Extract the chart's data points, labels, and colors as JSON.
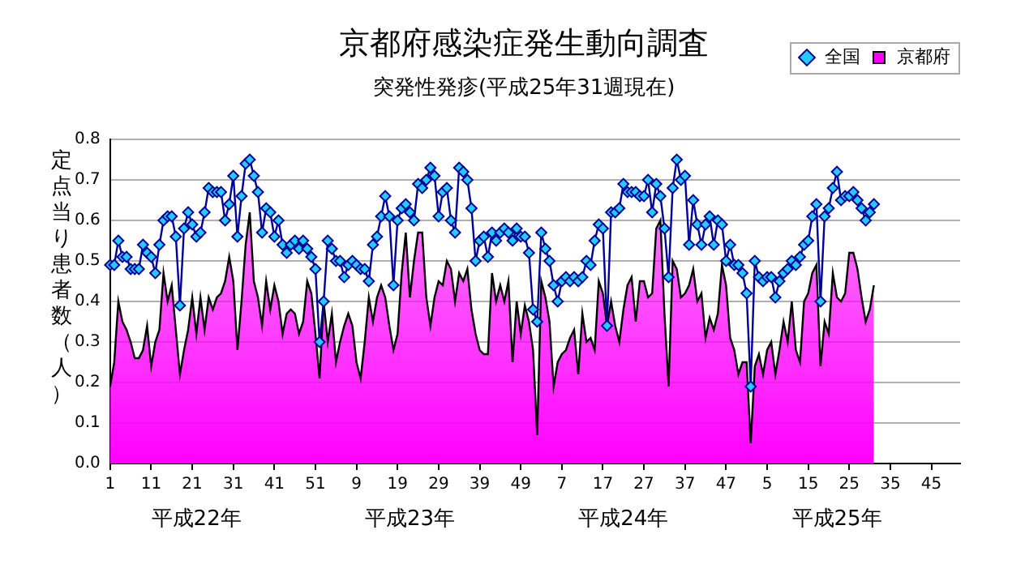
{
  "chart_data": {
    "type": "line",
    "title": "京都府感染症発生動向調査",
    "subtitle": "突発性発疹(平成25年31週現在)",
    "ylabel": "定点当り患者数（人）",
    "annotations": [
      "平成22年",
      "平成23年",
      "平成24年",
      "平成25年"
    ],
    "categories": [
      "1",
      null,
      null,
      null,
      null,
      null,
      null,
      null,
      null,
      null,
      "11",
      null,
      null,
      null,
      null,
      null,
      null,
      null,
      null,
      null,
      "21",
      null,
      null,
      null,
      null,
      null,
      null,
      null,
      null,
      null,
      "31",
      null,
      null,
      null,
      null,
      null,
      null,
      null,
      null,
      null,
      "41",
      null,
      null,
      null,
      null,
      null,
      null,
      null,
      null,
      null,
      "51",
      null,
      null,
      null,
      null,
      null,
      null,
      null,
      null,
      null,
      "9",
      null,
      null,
      null,
      null,
      null,
      null,
      null,
      null,
      null,
      "19",
      null,
      null,
      null,
      null,
      null,
      null,
      null,
      null,
      null,
      "29",
      null,
      null,
      null,
      null,
      null,
      null,
      null,
      null,
      null,
      "39",
      null,
      null,
      null,
      null,
      null,
      null,
      null,
      null,
      null,
      "49",
      null,
      null,
      null,
      null,
      null,
      null,
      null,
      null,
      null,
      "7",
      null,
      null,
      null,
      null,
      null,
      null,
      null,
      null,
      null,
      "17",
      null,
      null,
      null,
      null,
      null,
      null,
      null,
      null,
      null,
      "27",
      null,
      null,
      null,
      null,
      null,
      null,
      null,
      null,
      null,
      "37",
      null,
      null,
      null,
      null,
      null,
      null,
      null,
      null,
      null,
      "47",
      null,
      null,
      null,
      null,
      null,
      null,
      null,
      null,
      null,
      "5",
      null,
      null,
      null,
      null,
      null,
      null,
      null,
      null,
      null,
      "15",
      null,
      null,
      null,
      null,
      null,
      null,
      null,
      null,
      null,
      "25",
      null,
      null,
      null,
      null,
      null,
      null,
      null,
      null,
      null,
      "35",
      null,
      null,
      null,
      null,
      null,
      null,
      null,
      null,
      null,
      "45",
      null,
      null,
      null,
      null,
      null,
      null,
      null
    ],
    "series": [
      {
        "name": "京都府",
        "type": "area",
        "color": "#ff00ff",
        "values": [
          0.19,
          0.25,
          0.4,
          0.35,
          0.33,
          0.3,
          0.26,
          0.26,
          0.28,
          0.34,
          0.24,
          0.3,
          0.33,
          0.47,
          0.4,
          0.44,
          0.33,
          0.22,
          0.28,
          0.33,
          0.41,
          0.32,
          0.41,
          0.33,
          0.41,
          0.38,
          0.41,
          0.42,
          0.45,
          0.51,
          0.45,
          0.28,
          0.4,
          0.54,
          0.62,
          0.45,
          0.41,
          0.34,
          0.45,
          0.38,
          0.44,
          0.4,
          0.32,
          0.37,
          0.38,
          0.37,
          0.32,
          0.35,
          0.45,
          0.42,
          0.32,
          0.21,
          0.4,
          0.3,
          0.37,
          0.25,
          0.3,
          0.34,
          0.37,
          0.34,
          0.25,
          0.21,
          0.3,
          0.41,
          0.35,
          0.41,
          0.44,
          0.41,
          0.34,
          0.28,
          0.32,
          0.47,
          0.57,
          0.41,
          0.5,
          0.57,
          0.57,
          0.41,
          0.34,
          0.41,
          0.45,
          0.44,
          0.5,
          0.48,
          0.4,
          0.47,
          0.45,
          0.48,
          0.38,
          0.32,
          0.28,
          0.27,
          0.27,
          0.47,
          0.4,
          0.44,
          0.4,
          0.45,
          0.25,
          0.4,
          0.32,
          0.39,
          0.35,
          0.28,
          0.07,
          0.45,
          0.41,
          0.35,
          0.19,
          0.25,
          0.27,
          0.28,
          0.31,
          0.33,
          0.22,
          0.37,
          0.3,
          0.31,
          0.28,
          0.45,
          0.42,
          0.34,
          0.4,
          0.34,
          0.3,
          0.38,
          0.44,
          0.46,
          0.35,
          0.45,
          0.45,
          0.41,
          0.42,
          0.58,
          0.6,
          0.37,
          0.19,
          0.5,
          0.48,
          0.41,
          0.42,
          0.44,
          0.48,
          0.4,
          0.42,
          0.31,
          0.36,
          0.33,
          0.37,
          0.49,
          0.44,
          0.31,
          0.28,
          0.22,
          0.25,
          0.25,
          0.05,
          0.24,
          0.27,
          0.22,
          0.28,
          0.3,
          0.22,
          0.28,
          0.35,
          0.3,
          0.4,
          0.28,
          0.25,
          0.4,
          0.42,
          0.47,
          0.49,
          0.24,
          0.35,
          0.32,
          0.47,
          0.41,
          0.4,
          0.42,
          0.52,
          0.52,
          0.48,
          0.41,
          0.35,
          0.38,
          0.44,
          null,
          null,
          null,
          null,
          null,
          null,
          null,
          null,
          null,
          null,
          null,
          null,
          null,
          null,
          null,
          null,
          null,
          null,
          null,
          null,
          null
        ]
      },
      {
        "name": "全国",
        "type": "line",
        "marker": "diamond",
        "color": "#000099",
        "values": [
          0.49,
          0.49,
          0.55,
          0.51,
          0.51,
          0.48,
          0.48,
          0.48,
          0.54,
          0.52,
          0.51,
          0.47,
          0.54,
          0.6,
          0.61,
          0.61,
          0.56,
          0.39,
          0.58,
          0.62,
          0.59,
          0.56,
          0.57,
          0.62,
          0.68,
          0.67,
          0.67,
          0.67,
          0.6,
          0.64,
          0.71,
          0.56,
          0.66,
          0.74,
          0.75,
          0.71,
          0.67,
          0.57,
          0.63,
          0.62,
          0.56,
          0.6,
          0.54,
          0.52,
          0.54,
          0.55,
          0.53,
          0.55,
          0.53,
          0.51,
          0.48,
          0.3,
          0.4,
          0.55,
          0.53,
          0.5,
          0.5,
          0.46,
          0.49,
          0.5,
          0.49,
          0.48,
          0.48,
          0.45,
          0.54,
          0.56,
          0.61,
          0.66,
          0.61,
          0.44,
          0.6,
          0.63,
          0.64,
          0.62,
          0.6,
          0.69,
          0.68,
          0.7,
          0.73,
          0.71,
          0.61,
          0.67,
          0.68,
          0.6,
          0.57,
          0.73,
          0.72,
          0.7,
          0.63,
          0.5,
          0.55,
          0.56,
          0.51,
          0.57,
          0.55,
          0.57,
          0.58,
          0.57,
          0.55,
          0.58,
          0.56,
          0.56,
          0.52,
          0.38,
          0.35,
          0.57,
          0.53,
          0.5,
          0.44,
          0.4,
          0.45,
          0.46,
          0.45,
          0.46,
          0.45,
          0.46,
          0.5,
          0.49,
          0.55,
          0.59,
          0.58,
          0.34,
          0.62,
          0.62,
          0.63,
          0.69,
          0.67,
          0.67,
          0.67,
          0.66,
          0.66,
          0.7,
          0.62,
          0.69,
          0.66,
          0.58,
          0.46,
          0.68,
          0.75,
          0.7,
          0.71,
          0.54,
          0.65,
          0.59,
          0.54,
          0.59,
          0.61,
          0.54,
          0.6,
          0.59,
          0.5,
          0.54,
          0.49,
          0.49,
          0.47,
          0.42,
          0.19,
          0.5,
          0.46,
          0.45,
          0.46,
          0.46,
          0.41,
          0.45,
          0.47,
          0.48,
          0.5,
          0.49,
          0.51,
          0.54,
          0.55,
          0.61,
          0.64,
          0.4,
          0.61,
          0.63,
          0.68,
          0.72,
          0.65,
          0.66,
          0.66,
          0.67,
          0.65,
          0.63,
          0.6,
          0.62,
          0.64,
          null,
          null,
          null,
          null,
          null,
          null,
          null,
          null,
          null,
          null,
          null,
          null,
          null,
          null,
          null,
          null,
          null,
          null,
          null,
          null,
          null
        ]
      }
    ],
    "ylim": [
      0,
      0.8
    ],
    "yticks": [
      {
        "value": 0,
        "label": "0.0"
      },
      0.1,
      0.2,
      0.3,
      0.4,
      0.5,
      0.6,
      0.7,
      0.8
    ],
    "grid": "y",
    "legend": "top right"
  }
}
